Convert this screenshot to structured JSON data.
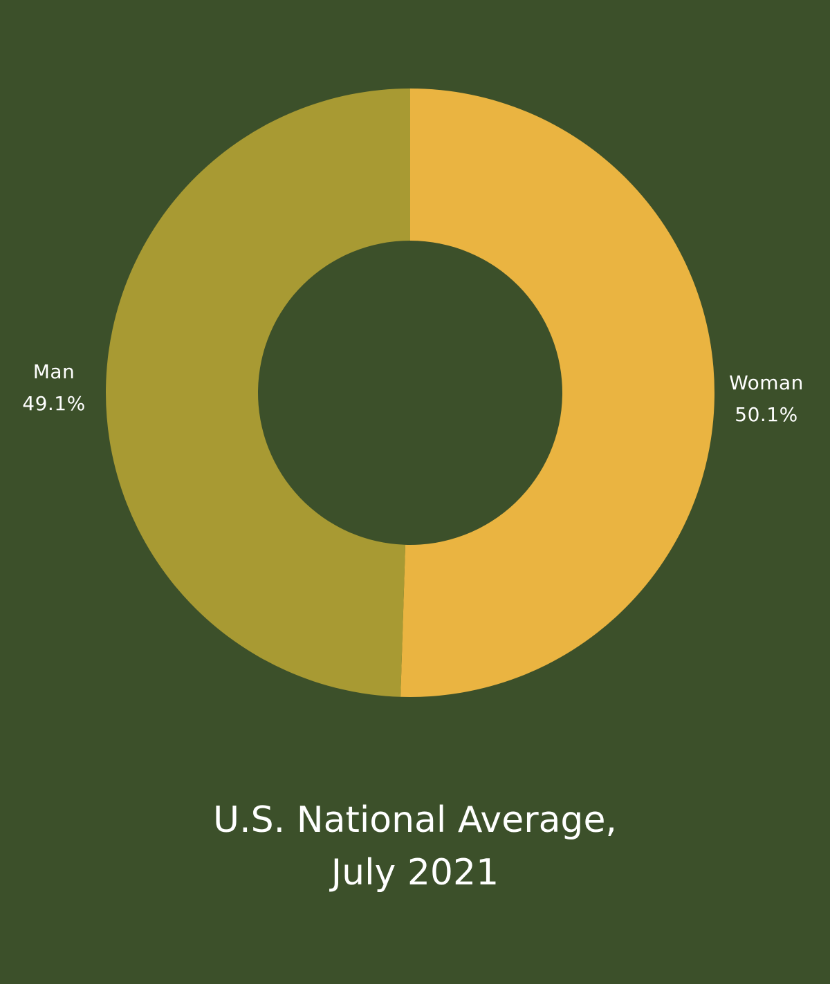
{
  "colors": {
    "background": "#3c502a",
    "woman": "#eab441",
    "man": "#a89a33",
    "text": "#ffffff"
  },
  "chart_data": {
    "type": "pie",
    "variant": "donut",
    "title": "U.S. National Average,",
    "subtitle": "July 2021",
    "slices": [
      {
        "name": "Woman",
        "value": 50.1,
        "value_label": "50.1%",
        "color": "#eab441"
      },
      {
        "name": "Man",
        "value": 49.1,
        "value_label": "49.1%",
        "color": "#a89a33"
      }
    ]
  }
}
